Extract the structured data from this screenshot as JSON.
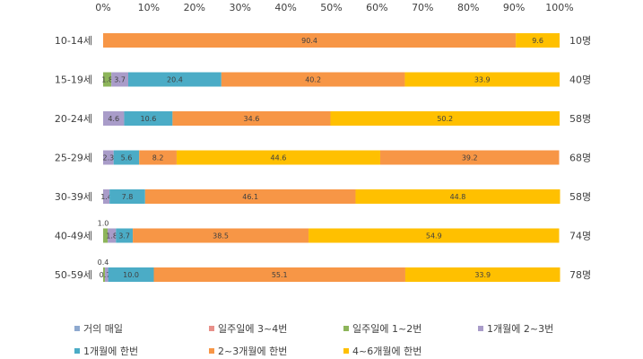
{
  "chart_data": {
    "type": "bar",
    "orientation": "horizontal",
    "stacked": "percent",
    "xlim": [
      0,
      100
    ],
    "tick_labels": [
      "0%",
      "10%",
      "20%",
      "30%",
      "40%",
      "50%",
      "60%",
      "70%",
      "80%",
      "90%",
      "100%"
    ],
    "categories": [
      "10-14세",
      "15-19세",
      "20-24세",
      "25-29세",
      "30-39세",
      "40-49세",
      "50-59세"
    ],
    "counts": [
      "10명",
      "40명",
      "58명",
      "68명",
      "58명",
      "74명",
      "78명"
    ],
    "legend_position": "bottom",
    "series": [
      {
        "name": "거의 매일",
        "color": "#8EA9CF",
        "values": [
          0,
          0,
          0,
          0,
          0,
          0,
          0
        ],
        "labels": [
          "",
          "",
          "",
          "",
          "",
          "",
          ""
        ]
      },
      {
        "name": "일주일에 3~4번",
        "color": "#E8908A",
        "values": [
          0,
          0,
          0,
          0,
          0,
          0,
          0
        ],
        "labels": [
          "",
          "",
          "",
          "",
          "",
          "",
          ""
        ]
      },
      {
        "name": "일주일에 1~2번",
        "color": "#8DB55A",
        "values": [
          0,
          1.8,
          0,
          0,
          0,
          1.0,
          0.4
        ],
        "labels": [
          "",
          "1.8",
          "",
          "",
          "",
          "1.0",
          "0.4"
        ]
      },
      {
        "name": "1개월에 2~3번",
        "color": "#A99CC9",
        "values": [
          0,
          3.7,
          4.6,
          2.3,
          1.4,
          1.8,
          0.7
        ],
        "labels": [
          "",
          "3.7",
          "4.6",
          "2.3",
          "1.4",
          "1.8",
          "0.7"
        ]
      },
      {
        "name": "1개월에 한번",
        "color": "#4BACC6",
        "values": [
          0,
          20.4,
          10.6,
          5.6,
          7.8,
          3.7,
          10.0
        ],
        "labels": [
          "",
          "20.4",
          "10.6",
          "5.6",
          "7.8",
          "3.7",
          "10.0"
        ]
      },
      {
        "name": "2~3개월에 한번",
        "color": "#F79646",
        "values": [
          90.4,
          40.2,
          34.6,
          8.2,
          46.1,
          38.5,
          55.1
        ],
        "labels": [
          "90.4",
          "40.2",
          "34.6",
          "8.2",
          "46.1",
          "38.5",
          "55.1"
        ]
      },
      {
        "name": "4~6개월에 한번",
        "color": "#FFC000",
        "values": [
          9.6,
          33.9,
          50.2,
          44.6,
          44.8,
          54.9,
          33.9
        ],
        "labels": [
          "9.6",
          "33.9",
          "50.2",
          "44.6",
          "44.8",
          "54.9",
          "33.9"
        ]
      },
      {
        "name": "",
        "color": "#F79646",
        "values": [
          0,
          0,
          0,
          39.2,
          0,
          0,
          0
        ],
        "labels": [
          "",
          "",
          "",
          "39.2",
          "",
          "",
          ""
        ]
      }
    ]
  }
}
